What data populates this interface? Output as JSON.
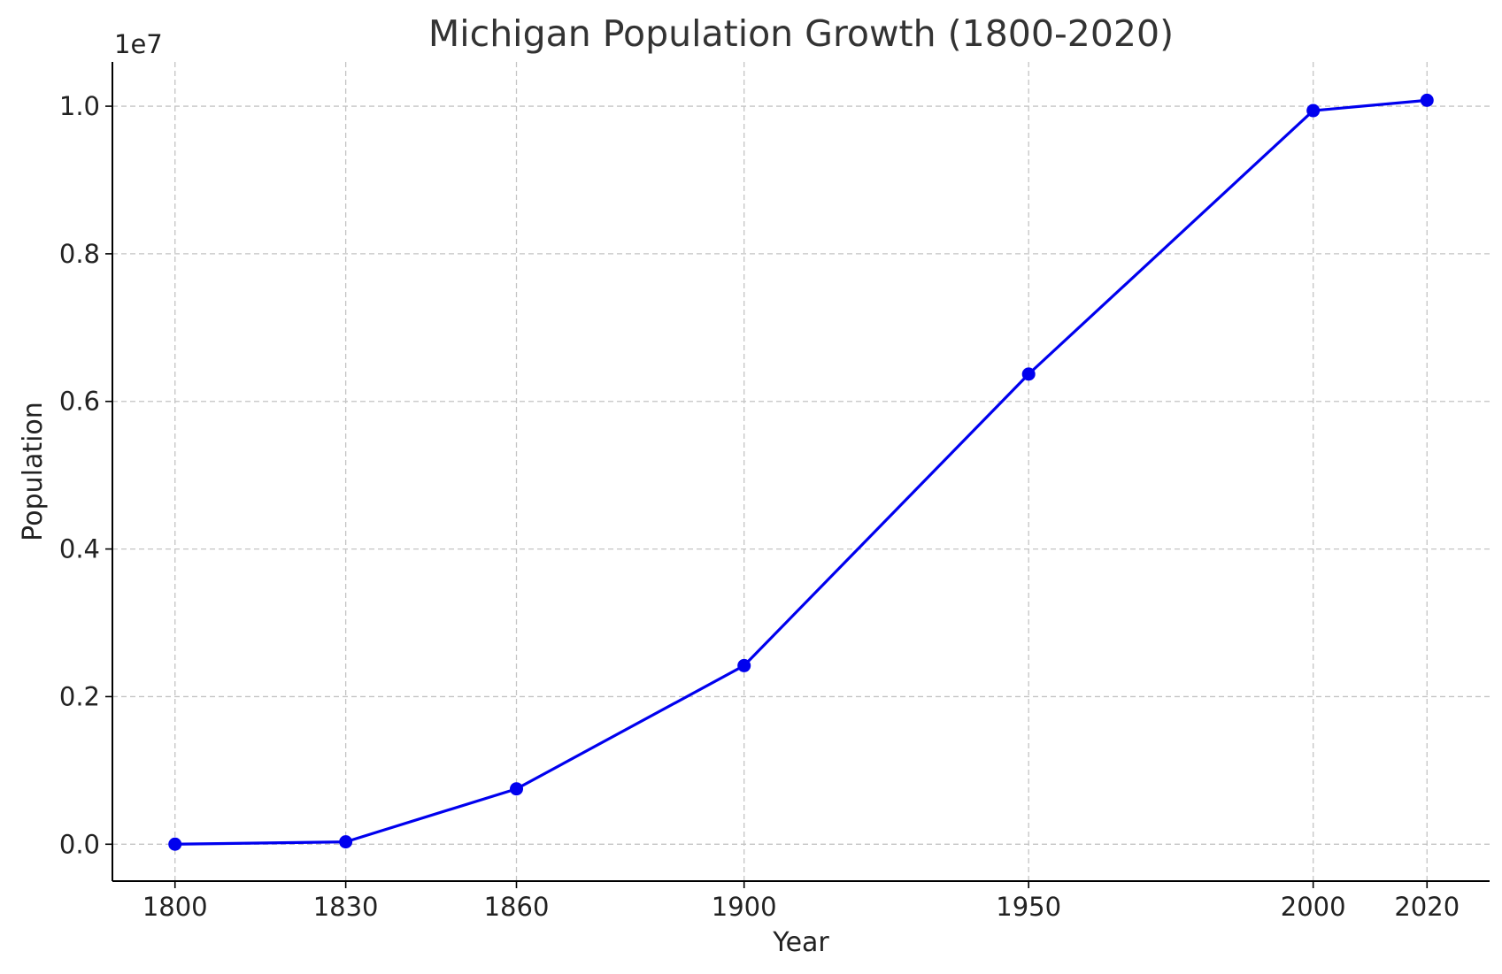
{
  "chart_data": {
    "type": "line",
    "title": "Michigan Population Growth (1800-2020)",
    "xlabel": "Year",
    "ylabel": "Population",
    "y_offset_label": "1e7",
    "x": [
      1800,
      1830,
      1860,
      1900,
      1950,
      2000,
      2020
    ],
    "x_tick_labels": [
      "1800",
      "1830",
      "1860",
      "1900",
      "1950",
      "2000",
      "2020"
    ],
    "y_ticks": [
      0.0,
      0.2,
      0.4,
      0.6,
      0.8,
      1.0
    ],
    "y_tick_labels": [
      "0.0",
      "0.2",
      "0.4",
      "0.6",
      "0.8",
      "1.0"
    ],
    "xlim": [
      1789,
      2031
    ],
    "ylim": [
      -0.05,
      1.06
    ],
    "grid": true,
    "series": [
      {
        "values": [
          5e-05,
          0.0032,
          0.075,
          0.242,
          0.637,
          0.994,
          1.008
        ],
        "color": "#0000ee",
        "marker": "circle"
      }
    ]
  }
}
